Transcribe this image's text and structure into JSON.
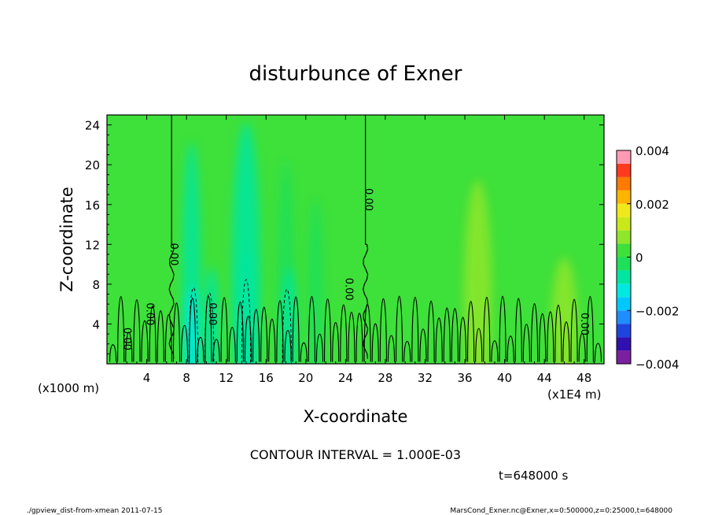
{
  "chart_data": {
    "type": "heatmap",
    "title": "disturbunce of Exner",
    "xlabel": "X-coordinate",
    "ylabel": "Z-coordinate",
    "x_units_note": "(x1E4 m)",
    "y_units_note": "(x1000 m)",
    "x_ticks": [
      "4",
      "8",
      "12",
      "16",
      "20",
      "24",
      "28",
      "32",
      "36",
      "40",
      "44",
      "48"
    ],
    "x_tick_values": [
      4,
      8,
      12,
      16,
      20,
      24,
      28,
      32,
      36,
      40,
      44,
      48
    ],
    "y_ticks": [
      "4",
      "8",
      "12",
      "16",
      "20",
      "24"
    ],
    "y_tick_values": [
      4,
      8,
      12,
      16,
      20,
      24
    ],
    "xlim": [
      0,
      50
    ],
    "ylim": [
      0,
      25
    ],
    "colorbar": {
      "labels": [
        "0.004",
        "0.002",
        "0",
        "−0.002",
        "−0.004"
      ],
      "label_values": [
        0.004,
        0.002,
        0,
        -0.002,
        -0.004
      ],
      "range": [
        -0.004,
        0.004
      ],
      "levels": [
        {
          "from": -0.004,
          "to": -0.0035,
          "color": "#7a1fa0"
        },
        {
          "from": -0.0035,
          "to": -0.003,
          "color": "#3010b0"
        },
        {
          "from": -0.003,
          "to": -0.0025,
          "color": "#1e44e0"
        },
        {
          "from": -0.0025,
          "to": -0.002,
          "color": "#1f8cff"
        },
        {
          "from": -0.002,
          "to": -0.0015,
          "color": "#00c8ff"
        },
        {
          "from": -0.0015,
          "to": -0.001,
          "color": "#00e8e0"
        },
        {
          "from": -0.001,
          "to": -0.0005,
          "color": "#00e6a0"
        },
        {
          "from": -0.0005,
          "to": 0.0,
          "color": "#1fe05a"
        },
        {
          "from": 0.0,
          "to": 0.0005,
          "color": "#3ee03a"
        },
        {
          "from": 0.0005,
          "to": 0.001,
          "color": "#8fe62a"
        },
        {
          "from": 0.001,
          "to": 0.0015,
          "color": "#c8e81a"
        },
        {
          "from": 0.0015,
          "to": 0.002,
          "color": "#f0e81a"
        },
        {
          "from": 0.002,
          "to": 0.0025,
          "color": "#ffb400"
        },
        {
          "from": 0.0025,
          "to": 0.003,
          "color": "#ff7a00"
        },
        {
          "from": 0.003,
          "to": 0.0035,
          "color": "#ff3a1e"
        },
        {
          "from": 0.0035,
          "to": 0.004,
          "color": "#ff9ab4"
        }
      ]
    },
    "contour_label": "0.00",
    "contour_labels": [
      {
        "x": 1.7,
        "z": 2.5
      },
      {
        "x": 4.0,
        "z": 5.0
      },
      {
        "x": 6.4,
        "z": 11.0
      },
      {
        "x": 10.3,
        "z": 5.0
      },
      {
        "x": 24.0,
        "z": 7.5
      },
      {
        "x": 26.0,
        "z": 16.5
      },
      {
        "x": 47.7,
        "z": 4.0
      }
    ],
    "background_value": 0.0002,
    "blobs": [
      {
        "x": 8.5,
        "z_top": 23,
        "width": 1.2,
        "value": -0.0006
      },
      {
        "x": 8.6,
        "z_top": 8,
        "width": 0.8,
        "value": -0.0015
      },
      {
        "x": 10.5,
        "z_top": 10,
        "width": 1.0,
        "value": -0.0008
      },
      {
        "x": 14.0,
        "z_top": 25,
        "width": 2.2,
        "value": -0.0006
      },
      {
        "x": 14.0,
        "z_top": 12,
        "width": 1.0,
        "value": -0.001
      },
      {
        "x": 18.0,
        "z_top": 21,
        "width": 1.0,
        "value": -0.0005
      },
      {
        "x": 18.3,
        "z_top": 10,
        "width": 0.8,
        "value": -0.0009
      },
      {
        "x": 21.0,
        "z_top": 17,
        "width": 0.9,
        "value": -0.0004
      },
      {
        "x": 37.3,
        "z_top": 19,
        "width": 2.2,
        "value": 0.0007
      },
      {
        "x": 46.0,
        "z_top": 11,
        "width": 2.0,
        "value": 0.0006
      }
    ],
    "contour_zero_lines_x": [
      6.5,
      26.0
    ],
    "contour_interval_text": "CONTOUR INTERVAL = 1.000E-03",
    "time_text": "t=648000 s"
  },
  "footer": {
    "left": "./gpview_dist-from-xmean  2011-07-15",
    "right": "MarsCond_Exner.nc@Exner,x=0:500000,z=0:25000,t=648000"
  }
}
